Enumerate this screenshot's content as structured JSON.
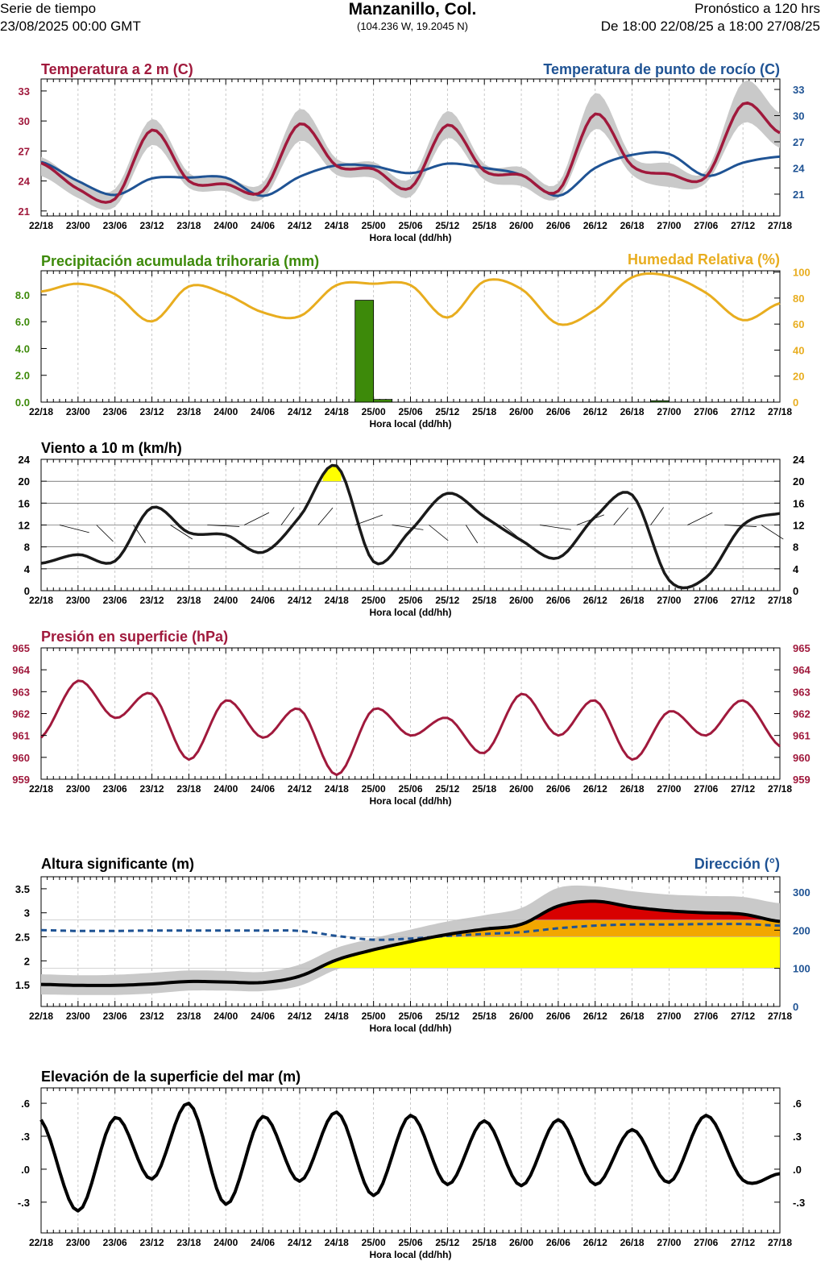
{
  "header": {
    "left_line1": "Serie de tiempo",
    "left_line2": "23/08/2025 00:00 GMT",
    "title": "Manzanillo, Col.",
    "coords": "(104.236 W, 19.2045 N)",
    "right_line1": "Pronóstico a 120 hrs",
    "right_line2": "De 18:00 22/08/25 a 18:00 27/08/25"
  },
  "colors": {
    "temperature": "#a0193c",
    "dewpoint": "#1f5394",
    "precip": "#3d8a0a",
    "humidity": "#e8ad1f",
    "black": "#000000",
    "pressure": "#a0193c",
    "direction": "#1f5394",
    "spread": "#c9c9c9",
    "yellow": "#ffff00",
    "orange": "#f2a700",
    "red": "#d80000"
  },
  "x_axis": {
    "label": "Hora local (dd/hh)",
    "ticks": [
      "22/18",
      "23/00",
      "23/06",
      "23/12",
      "23/18",
      "24/00",
      "24/06",
      "24/12",
      "24/18",
      "25/00",
      "25/06",
      "25/12",
      "25/18",
      "26/00",
      "26/06",
      "26/12",
      "26/18",
      "27/00",
      "27/06",
      "27/12",
      "27/18"
    ]
  },
  "chart_data": [
    {
      "id": "temperature",
      "type": "line",
      "title": "Temperatura a 2 m (C)",
      "title_right": "Temperatura de punto de rocío (C)",
      "x": [
        "22/18",
        "23/00",
        "23/06",
        "23/12",
        "23/18",
        "24/00",
        "24/06",
        "24/12",
        "24/18",
        "25/00",
        "25/06",
        "25/12",
        "25/18",
        "26/00",
        "26/06",
        "26/12",
        "26/18",
        "27/00",
        "27/06",
        "27/12",
        "27/18"
      ],
      "yticks_left": [
        21,
        24,
        27,
        30,
        33
      ],
      "ylim_left": [
        20.5,
        34.2
      ],
      "yticks_right": [
        21,
        24,
        27,
        30,
        33
      ],
      "ylim_right": [
        18.5,
        34.2
      ],
      "series": [
        {
          "name": "Temperatura a 2 m (C)",
          "axis": "left",
          "color": "#a0193c",
          "values": [
            25.8,
            23.2,
            22.2,
            29.1,
            24.0,
            23.7,
            23.0,
            29.7,
            25.5,
            25.2,
            23.3,
            29.6,
            25.0,
            24.6,
            23.0,
            30.7,
            25.5,
            24.7,
            24.4,
            31.7,
            28.8
          ],
          "band_lo": [
            24.5,
            22.3,
            21.4,
            27.6,
            23.3,
            23.0,
            22.2,
            28.0,
            24.6,
            24.3,
            22.4,
            28.3,
            24.1,
            23.5,
            22.3,
            29.2,
            24.6,
            23.4,
            23.8,
            29.8,
            27.3
          ],
          "band_hi": [
            26.4,
            24.0,
            23.2,
            30.2,
            24.8,
            24.4,
            23.8,
            31.2,
            26.2,
            25.9,
            24.2,
            31.0,
            25.7,
            25.4,
            23.8,
            32.8,
            26.4,
            25.8,
            25.0,
            33.9,
            30.8
          ]
        },
        {
          "name": "Temperatura de punto de rocío (C)",
          "axis": "right",
          "color": "#1f5394",
          "values": [
            24.7,
            22.5,
            20.9,
            22.8,
            22.9,
            22.9,
            20.8,
            23.0,
            24.3,
            24.2,
            23.4,
            24.5,
            24.0,
            23.2,
            20.8,
            24.0,
            25.5,
            25.6,
            23.1,
            24.6,
            25.3
          ]
        }
      ]
    },
    {
      "id": "precip_humidity",
      "type": "bar",
      "title": "Precipitación acumulada trihoraria (mm)",
      "title_right": "Humedad Relativa (%)",
      "x": [
        "22/18",
        "23/00",
        "23/06",
        "23/12",
        "23/18",
        "24/00",
        "24/06",
        "24/12",
        "24/18",
        "25/00",
        "25/06",
        "25/12",
        "25/18",
        "26/00",
        "26/06",
        "26/12",
        "26/18",
        "27/00",
        "27/06",
        "27/12",
        "27/18"
      ],
      "yticks_left": [
        "0.0",
        "2.0",
        "4.0",
        "6.0",
        "8.0"
      ],
      "ylim_left": [
        0,
        9.8
      ],
      "yticks_right": [
        0,
        20,
        40,
        60,
        80,
        100
      ],
      "ylim_right": [
        0,
        101
      ],
      "bars": [
        {
          "start": "24/21",
          "end": "25/00",
          "value": 7.6
        },
        {
          "start": "25/00",
          "end": "25/03",
          "value": 0.2
        },
        {
          "start": "26/21",
          "end": "27/00",
          "value": 0.1
        }
      ],
      "series": [
        {
          "name": "Humedad Relativa (%)",
          "axis": "right",
          "color": "#e8ad1f",
          "values": [
            85,
            91,
            83,
            62,
            89,
            83,
            69,
            66,
            90,
            91,
            90,
            65,
            93,
            87,
            60,
            71,
            96,
            97,
            84,
            63,
            76
          ]
        }
      ]
    },
    {
      "id": "wind",
      "type": "line",
      "title": "Viento a 10 m (km/h)",
      "x": [
        "22/18",
        "23/00",
        "23/06",
        "23/12",
        "23/18",
        "24/00",
        "24/06",
        "24/12",
        "24/18",
        "25/00",
        "25/06",
        "25/12",
        "25/18",
        "26/00",
        "26/06",
        "26/12",
        "26/18",
        "27/00",
        "27/06",
        "27/12",
        "27/18"
      ],
      "yticks": [
        0,
        4,
        8,
        12,
        16,
        20,
        24
      ],
      "ylim": [
        0,
        24
      ],
      "highlight_above": 20,
      "series": [
        {
          "name": "Viento a 10 m (km/h)",
          "color": "#000000",
          "values": [
            5.0,
            6.6,
            5.4,
            15.2,
            10.6,
            10.2,
            7.0,
            13.5,
            22.8,
            5.3,
            11.0,
            17.8,
            13.5,
            9.2,
            6.0,
            13.5,
            17.5,
            1.9,
            2.4,
            12.0,
            14.1
          ]
        }
      ]
    },
    {
      "id": "pressure",
      "type": "line",
      "title": "Presión en superficie (hPa)",
      "x": [
        "22/18",
        "23/00",
        "23/06",
        "23/12",
        "23/18",
        "24/00",
        "24/06",
        "24/12",
        "24/18",
        "25/00",
        "25/06",
        "25/12",
        "25/18",
        "26/00",
        "26/06",
        "26/12",
        "26/18",
        "27/00",
        "27/06",
        "27/12",
        "27/18"
      ],
      "yticks": [
        959,
        960,
        961,
        962,
        963,
        964,
        965
      ],
      "ylim": [
        959,
        965
      ],
      "series": [
        {
          "name": "Presión en superficie (hPa)",
          "color": "#a0193c",
          "values": [
            960.9,
            963.5,
            961.8,
            962.9,
            959.9,
            962.6,
            960.9,
            962.2,
            959.2,
            962.2,
            961.0,
            961.8,
            960.2,
            962.9,
            961.0,
            962.6,
            959.9,
            962.1,
            961.0,
            962.6,
            960.5
          ]
        }
      ]
    },
    {
      "id": "waves",
      "type": "area",
      "title": "Altura significante (m)",
      "title_right": "Dirección (°)",
      "x": [
        "22/18",
        "23/00",
        "23/06",
        "23/12",
        "23/18",
        "24/00",
        "24/06",
        "24/12",
        "24/18",
        "25/00",
        "25/06",
        "25/12",
        "25/18",
        "26/00",
        "26/06",
        "26/12",
        "26/18",
        "27/00",
        "27/06",
        "27/12",
        "27/18"
      ],
      "yticks_left": [
        "1.5",
        "2",
        "2.5",
        "3",
        "3.5"
      ],
      "ylim_left": [
        1.05,
        3.75
      ],
      "yticks_right": [
        0,
        100,
        200,
        300
      ],
      "ylim_right": [
        0,
        340
      ],
      "series": [
        {
          "name": "Altura significante (m)",
          "axis": "left",
          "color": "#000000",
          "values": [
            1.51,
            1.49,
            1.49,
            1.52,
            1.57,
            1.56,
            1.55,
            1.68,
            2.02,
            2.23,
            2.4,
            2.55,
            2.66,
            2.76,
            3.14,
            3.24,
            3.12,
            3.04,
            3.0,
            2.97,
            2.82
          ],
          "band_lo": [
            1.3,
            1.29,
            1.29,
            1.32,
            1.38,
            1.38,
            1.37,
            1.48,
            1.82,
            2.03,
            2.2,
            2.35,
            2.46,
            2.55,
            2.84,
            2.95,
            2.86,
            2.78,
            2.74,
            2.7,
            2.58
          ],
          "band_hi": [
            1.72,
            1.7,
            1.71,
            1.75,
            1.8,
            1.79,
            1.77,
            1.92,
            2.27,
            2.47,
            2.65,
            2.82,
            2.95,
            3.1,
            3.52,
            3.55,
            3.45,
            3.38,
            3.35,
            3.33,
            3.2
          ]
        },
        {
          "name": "Dirección (°)",
          "axis": "right",
          "color": "#1f5394",
          "dashed": true,
          "values": [
            200,
            198,
            198,
            199,
            199,
            199,
            199,
            198,
            185,
            175,
            178,
            185,
            190,
            195,
            205,
            212,
            215,
            215,
            216,
            216,
            212
          ]
        }
      ]
    },
    {
      "id": "sea_level",
      "type": "line",
      "title": "Elevación de la superficie del mar (m)",
      "x": [
        "22/18",
        "23/00",
        "23/06",
        "23/12",
        "23/18",
        "24/00",
        "24/06",
        "24/12",
        "24/18",
        "25/00",
        "25/06",
        "25/12",
        "25/18",
        "26/00",
        "26/06",
        "26/12",
        "26/18",
        "27/00",
        "27/06",
        "27/12",
        "27/18"
      ],
      "yticks": [
        "-.3",
        ".0",
        ".3",
        ".6"
      ],
      "ylim": [
        -0.58,
        0.74
      ],
      "series": [
        {
          "name": "Elevación de la superficie del mar (m)",
          "color": "#000000",
          "values": [
            0.45,
            -0.38,
            0.47,
            -0.09,
            0.6,
            -0.32,
            0.48,
            -0.11,
            0.52,
            -0.24,
            0.49,
            -0.14,
            0.44,
            -0.15,
            0.45,
            -0.14,
            0.36,
            -0.12,
            0.49,
            -0.1,
            -0.04
          ]
        }
      ]
    }
  ]
}
